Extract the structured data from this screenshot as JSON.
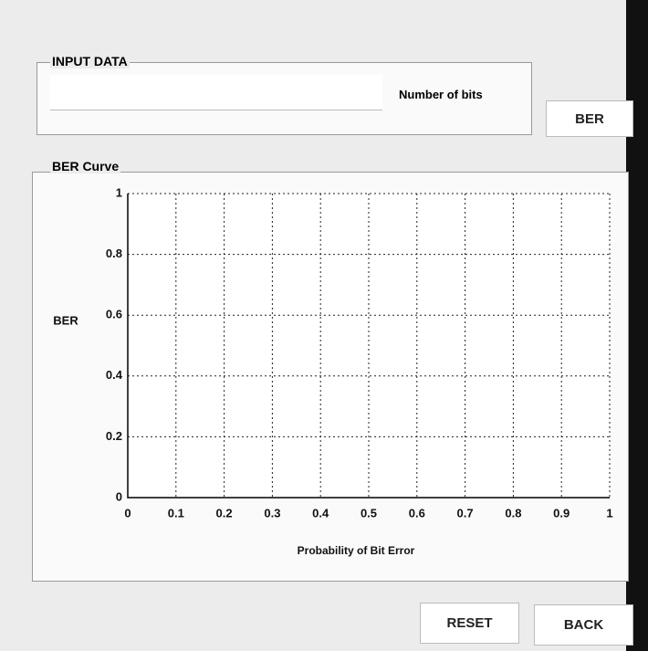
{
  "input_panel": {
    "title": "INPUT DATA",
    "field_label": "Number of bits",
    "button": "BER"
  },
  "curve_panel": {
    "title": "BER Curve"
  },
  "chart_data": {
    "type": "line",
    "xlabel": "Probability of Bit Error",
    "ylabel": "BER",
    "xlim": [
      0,
      1
    ],
    "ylim": [
      0,
      1
    ],
    "xticks": [
      0,
      0.1,
      0.2,
      0.3,
      0.4,
      0.5,
      0.6,
      0.7,
      0.8,
      0.9,
      1
    ],
    "yticks": [
      0,
      0.2,
      0.4,
      0.6,
      0.8,
      1
    ],
    "grid": true
  },
  "buttons": [
    "RESET",
    "BACK"
  ]
}
